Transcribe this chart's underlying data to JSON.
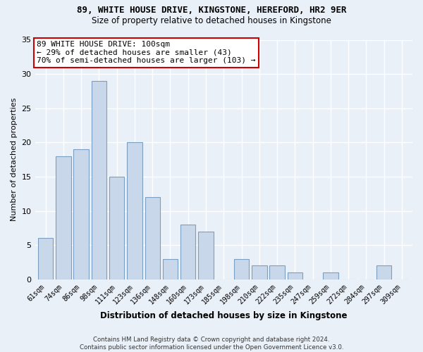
{
  "title": "89, WHITE HOUSE DRIVE, KINGSTONE, HEREFORD, HR2 9ER",
  "subtitle": "Size of property relative to detached houses in Kingstone",
  "xlabel": "Distribution of detached houses by size in Kingstone",
  "ylabel": "Number of detached properties",
  "categories": [
    "61sqm",
    "74sqm",
    "86sqm",
    "98sqm",
    "111sqm",
    "123sqm",
    "136sqm",
    "148sqm",
    "160sqm",
    "173sqm",
    "185sqm",
    "198sqm",
    "210sqm",
    "222sqm",
    "235sqm",
    "247sqm",
    "259sqm",
    "272sqm",
    "284sqm",
    "297sqm",
    "309sqm"
  ],
  "values": [
    6,
    18,
    19,
    29,
    15,
    20,
    12,
    3,
    8,
    7,
    0,
    3,
    2,
    2,
    1,
    0,
    1,
    0,
    0,
    2,
    0
  ],
  "bar_color": "#c8d8ea",
  "bar_edge_color": "#7a9fc0",
  "annotation_box_text": "89 WHITE HOUSE DRIVE: 100sqm\n← 29% of detached houses are smaller (43)\n70% of semi-detached houses are larger (103) →",
  "annotation_box_color": "#ffffff",
  "annotation_box_edge_color": "#cc0000",
  "ylim": [
    0,
    35
  ],
  "yticks": [
    0,
    5,
    10,
    15,
    20,
    25,
    30,
    35
  ],
  "background_color": "#eaf0f8",
  "grid_color": "#ffffff",
  "footer_line1": "Contains HM Land Registry data © Crown copyright and database right 2024.",
  "footer_line2": "Contains public sector information licensed under the Open Government Licence v3.0."
}
